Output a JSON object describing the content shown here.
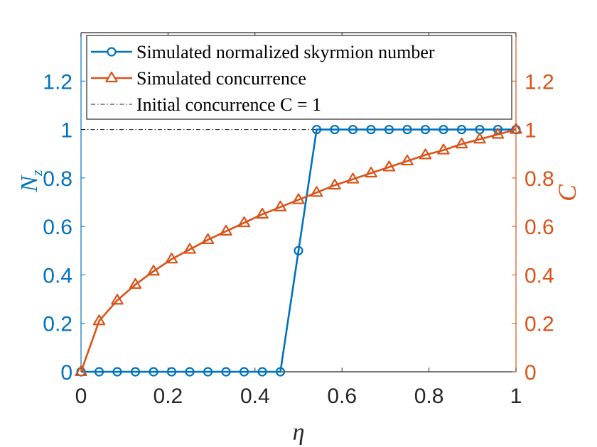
{
  "chart_data": {
    "type": "line",
    "x": [
      0,
      0.0417,
      0.0833,
      0.125,
      0.1667,
      0.2083,
      0.25,
      0.2917,
      0.3333,
      0.375,
      0.4167,
      0.4583,
      0.5,
      0.5417,
      0.5833,
      0.625,
      0.6667,
      0.7083,
      0.75,
      0.7917,
      0.8333,
      0.875,
      0.9167,
      0.9583,
      1.0
    ],
    "series": [
      {
        "name": "Simulated normalized skyrmion number",
        "axis": "left",
        "marker": "circle",
        "color": "#0072BD",
        "values": [
          0,
          0,
          0,
          0,
          0,
          0,
          0,
          0,
          0,
          0,
          0,
          0,
          0.5,
          1,
          1,
          1,
          1,
          1,
          1,
          1,
          1,
          1,
          1,
          1,
          1
        ]
      },
      {
        "name": "Simulated concurrence",
        "axis": "right",
        "marker": "triangle",
        "color": "#D95319",
        "values": [
          0,
          0.21,
          0.295,
          0.36,
          0.415,
          0.465,
          0.505,
          0.545,
          0.58,
          0.615,
          0.65,
          0.68,
          0.71,
          0.74,
          0.77,
          0.795,
          0.82,
          0.845,
          0.87,
          0.895,
          0.915,
          0.94,
          0.96,
          0.98,
          1.0
        ]
      },
      {
        "name": "Initial concurrence",
        "name_math": "C = 1",
        "type": "hline",
        "y": 1,
        "style": "dash-dot",
        "color": "#1a1a1a"
      }
    ],
    "xlabel": "η",
    "ylabel_left": "N",
    "ylabel_left_sub": "z",
    "ylabel_right": "C",
    "xlim": [
      0,
      1
    ],
    "ylim": [
      0,
      1.4
    ],
    "x_ticks": [
      0,
      0.2,
      0.4,
      0.6,
      0.8,
      1
    ],
    "x_tick_labels": [
      "0",
      "0.2",
      "0.4",
      "0.6",
      "0.8",
      "1"
    ],
    "y_ticks": [
      0,
      0.2,
      0.4,
      0.6,
      0.8,
      1,
      1.2
    ],
    "y_tick_labels": [
      "0",
      "0.2",
      "0.4",
      "0.6",
      "0.8",
      "1",
      "1.2"
    ],
    "grid": false,
    "legend_position": "top",
    "colors": {
      "left_axis": "#0072BD",
      "right_axis": "#D95319",
      "x_axis": "#262626"
    }
  }
}
